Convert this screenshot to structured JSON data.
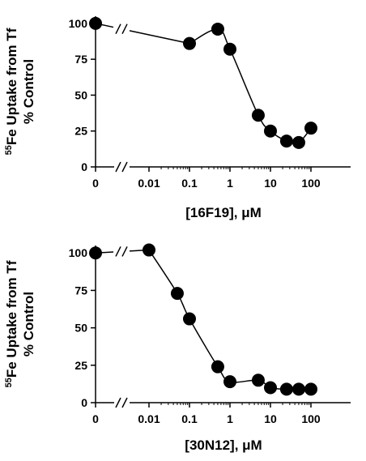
{
  "chart_data": [
    {
      "type": "scatter",
      "ylabel_line1_sup": "55",
      "ylabel_line1": "Fe Uptake from Tf",
      "ylabel_line2": "% Control",
      "xlabel": "[16F19], μM",
      "x_scale": "log with axis break",
      "yticks": [
        "0",
        "25",
        "50",
        "75",
        "100"
      ],
      "xticks": [
        "0",
        "0.01",
        "0.1",
        "1",
        "10",
        "100"
      ],
      "ylim": [
        0,
        105
      ],
      "control": {
        "x": 0,
        "y": 100
      },
      "points": [
        {
          "x": 0.1,
          "y": 86
        },
        {
          "x": 0.5,
          "y": 96
        },
        {
          "x": 1,
          "y": 82
        },
        {
          "x": 5,
          "y": 36
        },
        {
          "x": 10,
          "y": 25
        },
        {
          "x": 25,
          "y": 18
        },
        {
          "x": 50,
          "y": 17
        },
        {
          "x": 100,
          "y": 27
        }
      ],
      "axis_break_mark": "//"
    },
    {
      "type": "scatter",
      "ylabel_line1_sup": "55",
      "ylabel_line1": "Fe Uptake from Tf",
      "ylabel_line2": "% Control",
      "xlabel": "[30N12], μM",
      "x_scale": "log with axis break",
      "yticks": [
        "0",
        "25",
        "50",
        "75",
        "100"
      ],
      "xticks": [
        "0",
        "0.01",
        "0.1",
        "1",
        "10",
        "100"
      ],
      "ylim": [
        0,
        105
      ],
      "control": {
        "x": 0,
        "y": 100
      },
      "points": [
        {
          "x": 0.01,
          "y": 102
        },
        {
          "x": 0.05,
          "y": 73
        },
        {
          "x": 0.1,
          "y": 56
        },
        {
          "x": 0.5,
          "y": 24
        },
        {
          "x": 1,
          "y": 14
        },
        {
          "x": 5,
          "y": 15
        },
        {
          "x": 10,
          "y": 10
        },
        {
          "x": 25,
          "y": 9
        },
        {
          "x": 50,
          "y": 9
        },
        {
          "x": 100,
          "y": 9
        }
      ],
      "axis_break_mark": "//"
    }
  ]
}
